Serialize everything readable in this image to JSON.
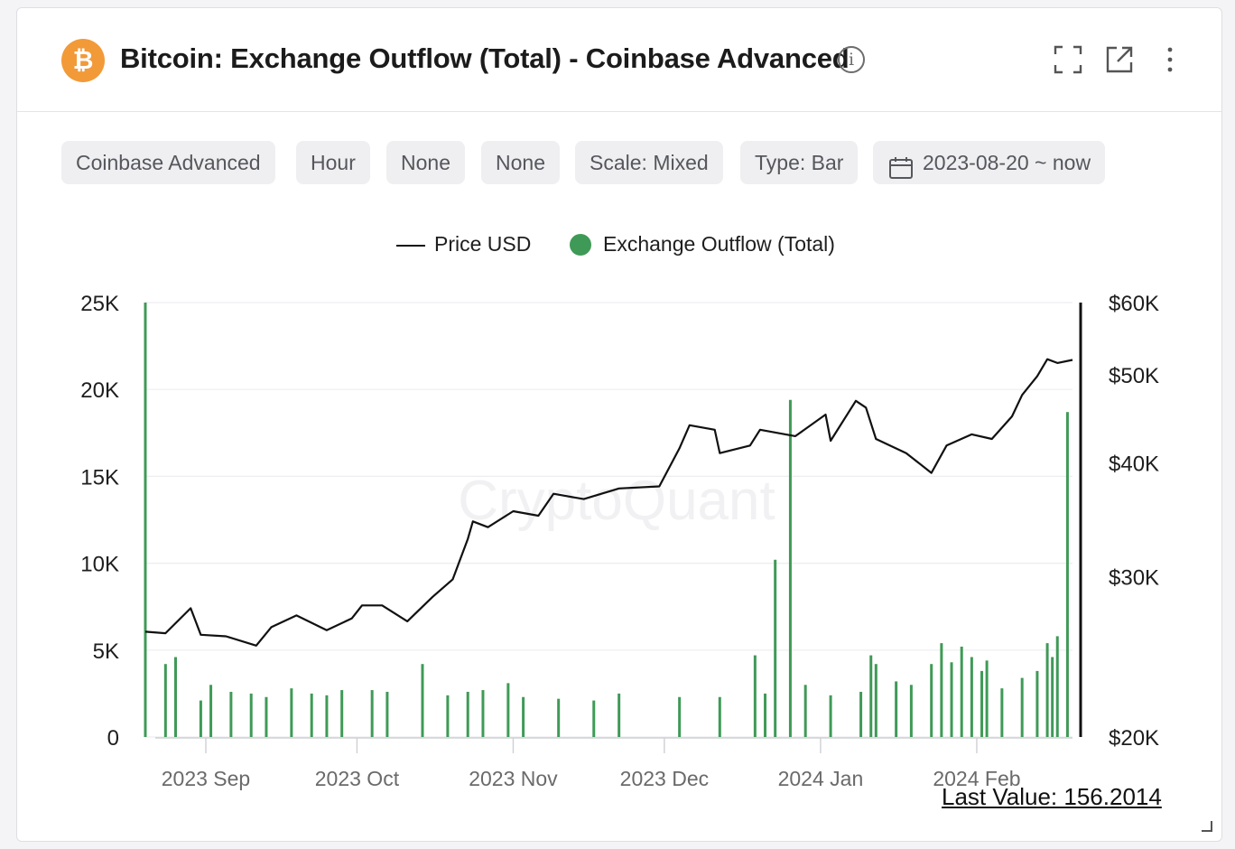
{
  "header": {
    "title": "Bitcoin: Exchange Outflow (Total) - Coinbase Advanced",
    "coin_symbol": "₿",
    "coin_color": "#F29A38"
  },
  "filters": [
    {
      "label": "Coinbase Advanced"
    },
    {
      "label": "Hour"
    },
    {
      "label": "None"
    },
    {
      "label": "None"
    },
    {
      "label": "Scale: Mixed"
    },
    {
      "label": "Type: Bar"
    },
    {
      "label": "2023-08-20 ~ now",
      "icon": "calendar-icon"
    }
  ],
  "legend": {
    "price": "Price USD",
    "outflow": "Exchange Outflow (Total)"
  },
  "watermark": "CryptoQuant",
  "footer": {
    "last_value": "Last Value: 156.2014"
  },
  "colors": {
    "bar": "#3F9A57",
    "price_line": "#111111",
    "grid": "#EDEDF0"
  },
  "chart_data": {
    "type": "bar",
    "title": "Bitcoin: Exchange Outflow (Total) - Coinbase Advanced",
    "x_tick_labels": [
      "2023 Sep",
      "2023 Oct",
      "2023 Nov",
      "2023 Dec",
      "2024 Jan",
      "2024 Feb"
    ],
    "x_tick_dates": [
      "2023-09-01",
      "2023-10-01",
      "2023-11-01",
      "2023-12-01",
      "2024-01-01",
      "2024-02-01"
    ],
    "x_range": [
      "2023-08-20",
      "2024-02-20"
    ],
    "y_left": {
      "ticks": [
        0,
        5000,
        10000,
        15000,
        20000,
        25000
      ],
      "tick_labels": [
        "0",
        "5K",
        "10K",
        "15K",
        "20K",
        "25K"
      ],
      "range": [
        0,
        25000
      ]
    },
    "y_right": {
      "ticks": [
        20000,
        30000,
        40000,
        50000,
        60000
      ],
      "tick_labels": [
        "$20K",
        "$30K",
        "$40K",
        "$50K",
        "$60K"
      ],
      "range": [
        20000,
        60000
      ],
      "scale": "log"
    },
    "grid": true,
    "legend_position": "top-center",
    "series": [
      {
        "name": "Exchange Outflow (Total)",
        "type": "bar",
        "axis": "left",
        "points": [
          [
            "2023-08-20",
            25000
          ],
          [
            "2023-08-24",
            4200
          ],
          [
            "2023-08-26",
            4600
          ],
          [
            "2023-08-31",
            2100
          ],
          [
            "2023-09-02",
            3000
          ],
          [
            "2023-09-06",
            2600
          ],
          [
            "2023-09-10",
            2500
          ],
          [
            "2023-09-13",
            2300
          ],
          [
            "2023-09-18",
            2800
          ],
          [
            "2023-09-22",
            2500
          ],
          [
            "2023-09-25",
            2400
          ],
          [
            "2023-09-28",
            2700
          ],
          [
            "2023-10-04",
            2700
          ],
          [
            "2023-10-07",
            2600
          ],
          [
            "2023-10-14",
            4200
          ],
          [
            "2023-10-19",
            2400
          ],
          [
            "2023-10-23",
            2600
          ],
          [
            "2023-10-26",
            2700
          ],
          [
            "2023-10-31",
            3100
          ],
          [
            "2023-11-03",
            2300
          ],
          [
            "2023-11-10",
            2200
          ],
          [
            "2023-11-17",
            2100
          ],
          [
            "2023-11-22",
            2500
          ],
          [
            "2023-12-04",
            2300
          ],
          [
            "2023-12-12",
            2300
          ],
          [
            "2023-12-19",
            4700
          ],
          [
            "2023-12-21",
            2500
          ],
          [
            "2023-12-23",
            10200
          ],
          [
            "2023-12-26",
            19400
          ],
          [
            "2023-12-29",
            3000
          ],
          [
            "2024-01-03",
            2400
          ],
          [
            "2024-01-09",
            2600
          ],
          [
            "2024-01-11",
            4700
          ],
          [
            "2024-01-12",
            4200
          ],
          [
            "2024-01-16",
            3200
          ],
          [
            "2024-01-19",
            3000
          ],
          [
            "2024-01-23",
            4200
          ],
          [
            "2024-01-25",
            5400
          ],
          [
            "2024-01-27",
            4300
          ],
          [
            "2024-01-29",
            5200
          ],
          [
            "2024-01-31",
            4600
          ],
          [
            "2024-02-02",
            3800
          ],
          [
            "2024-02-03",
            4400
          ],
          [
            "2024-02-06",
            2800
          ],
          [
            "2024-02-10",
            3400
          ],
          [
            "2024-02-13",
            3800
          ],
          [
            "2024-02-15",
            5400
          ],
          [
            "2024-02-16",
            4600
          ],
          [
            "2024-02-17",
            5800
          ],
          [
            "2024-02-19",
            18700
          ]
        ]
      },
      {
        "name": "Price USD",
        "type": "line",
        "axis": "right",
        "points": [
          [
            "2023-08-20",
            26100
          ],
          [
            "2023-08-24",
            26000
          ],
          [
            "2023-08-29",
            27700
          ],
          [
            "2023-08-31",
            25900
          ],
          [
            "2023-09-05",
            25800
          ],
          [
            "2023-09-11",
            25200
          ],
          [
            "2023-09-14",
            26400
          ],
          [
            "2023-09-19",
            27200
          ],
          [
            "2023-09-25",
            26200
          ],
          [
            "2023-09-30",
            27000
          ],
          [
            "2023-10-02",
            27900
          ],
          [
            "2023-10-06",
            27900
          ],
          [
            "2023-10-11",
            26800
          ],
          [
            "2023-10-16",
            28500
          ],
          [
            "2023-10-20",
            29800
          ],
          [
            "2023-10-23",
            33000
          ],
          [
            "2023-10-24",
            34500
          ],
          [
            "2023-10-27",
            34000
          ],
          [
            "2023-11-01",
            35400
          ],
          [
            "2023-11-06",
            35000
          ],
          [
            "2023-11-09",
            37000
          ],
          [
            "2023-11-15",
            36500
          ],
          [
            "2023-11-22",
            37500
          ],
          [
            "2023-11-30",
            37700
          ],
          [
            "2023-12-04",
            41500
          ],
          [
            "2023-12-06",
            44000
          ],
          [
            "2023-12-11",
            43500
          ],
          [
            "2023-12-12",
            41000
          ],
          [
            "2023-12-18",
            41800
          ],
          [
            "2023-12-20",
            43500
          ],
          [
            "2023-12-27",
            42800
          ],
          [
            "2024-01-02",
            45200
          ],
          [
            "2024-01-03",
            42300
          ],
          [
            "2024-01-08",
            46800
          ],
          [
            "2024-01-10",
            46000
          ],
          [
            "2024-01-12",
            42500
          ],
          [
            "2024-01-18",
            41000
          ],
          [
            "2024-01-23",
            39000
          ],
          [
            "2024-01-26",
            41800
          ],
          [
            "2024-01-31",
            43000
          ],
          [
            "2024-02-04",
            42500
          ],
          [
            "2024-02-08",
            45000
          ],
          [
            "2024-02-10",
            47500
          ],
          [
            "2024-02-13",
            49800
          ],
          [
            "2024-02-15",
            52000
          ],
          [
            "2024-02-17",
            51500
          ],
          [
            "2024-02-20",
            51900
          ]
        ]
      }
    ]
  }
}
